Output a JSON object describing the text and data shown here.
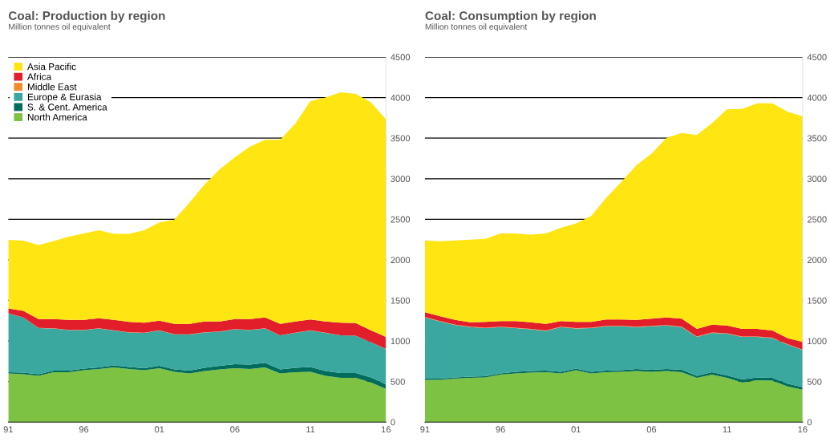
{
  "chart_data": [
    {
      "type": "area",
      "stacked": true,
      "title": "Coal: Production by region",
      "subtitle": "Million tonnes oil equivalent",
      "x": [
        1991,
        1992,
        1993,
        1994,
        1995,
        1996,
        1997,
        1998,
        1999,
        2000,
        2001,
        2002,
        2003,
        2004,
        2005,
        2006,
        2007,
        2008,
        2009,
        2010,
        2011,
        2012,
        2013,
        2014,
        2015,
        2016
      ],
      "xlim": [
        1991,
        2016
      ],
      "xticks": [
        {
          "value": 1991,
          "label": "91"
        },
        {
          "value": 1996,
          "label": "96"
        },
        {
          "value": 2001,
          "label": "01"
        },
        {
          "value": 2006,
          "label": "06"
        },
        {
          "value": 2011,
          "label": "11"
        },
        {
          "value": 2016,
          "label": "16"
        }
      ],
      "ylim": [
        0,
        4500
      ],
      "yticks": [
        0,
        500,
        1000,
        1500,
        2000,
        2500,
        3000,
        3500,
        4000,
        4500
      ],
      "grid": "y",
      "legend": "top left",
      "series": [
        {
          "name": "North America",
          "color": "#7dc242",
          "values": [
            600,
            590,
            570,
            615,
            615,
            640,
            655,
            675,
            655,
            640,
            665,
            620,
            600,
            630,
            650,
            665,
            655,
            675,
            600,
            615,
            620,
            570,
            545,
            545,
            490,
            410
          ]
        },
        {
          "name": "S. & Cent. America",
          "color": "#006c5b",
          "values": [
            15,
            20,
            20,
            20,
            20,
            20,
            20,
            25,
            25,
            25,
            30,
            30,
            35,
            40,
            45,
            50,
            55,
            55,
            50,
            55,
            60,
            60,
            60,
            60,
            60,
            55
          ]
        },
        {
          "name": "Europe & Eurasia",
          "color": "#3aa89f",
          "values": [
            725,
            680,
            570,
            520,
            500,
            475,
            480,
            430,
            425,
            435,
            435,
            430,
            445,
            435,
            420,
            430,
            425,
            425,
            420,
            430,
            450,
            470,
            465,
            460,
            435,
            435
          ]
        },
        {
          "name": "Middle East",
          "color": "#f28c28",
          "values": [
            1,
            1,
            1,
            1,
            1,
            1,
            1,
            1,
            1,
            1,
            1,
            1,
            1,
            1,
            1,
            1,
            1,
            1,
            1,
            1,
            1,
            1,
            1,
            1,
            1,
            1
          ]
        },
        {
          "name": "Africa",
          "color": "#e31e2b",
          "values": [
            60,
            80,
            110,
            115,
            125,
            125,
            125,
            130,
            130,
            125,
            120,
            130,
            130,
            135,
            125,
            125,
            135,
            135,
            140,
            140,
            135,
            140,
            155,
            155,
            145,
            150
          ]
        },
        {
          "name": "Asia Pacific",
          "color": "#ffe512",
          "values": [
            845,
            865,
            910,
            960,
            1025,
            1065,
            1085,
            1060,
            1085,
            1140,
            1210,
            1285,
            1495,
            1690,
            1875,
            1995,
            2125,
            2190,
            2270,
            2440,
            2690,
            2760,
            2840,
            2825,
            2810,
            2680
          ]
        }
      ]
    },
    {
      "type": "area",
      "stacked": true,
      "title": "Coal: Consumption by region",
      "subtitle": "Million tonnes oil equivalent",
      "x": [
        1991,
        1992,
        1993,
        1994,
        1995,
        1996,
        1997,
        1998,
        1999,
        2000,
        2001,
        2002,
        2003,
        2004,
        2005,
        2006,
        2007,
        2008,
        2009,
        2010,
        2011,
        2012,
        2013,
        2014,
        2015,
        2016
      ],
      "xlim": [
        1991,
        2016
      ],
      "xticks": [
        {
          "value": 1991,
          "label": "91"
        },
        {
          "value": 1996,
          "label": "96"
        },
        {
          "value": 2001,
          "label": "01"
        },
        {
          "value": 2006,
          "label": "06"
        },
        {
          "value": 2011,
          "label": "11"
        },
        {
          "value": 2016,
          "label": "16"
        }
      ],
      "ylim": [
        0,
        4500
      ],
      "yticks": [
        0,
        500,
        1000,
        1500,
        2000,
        2500,
        3000,
        3500,
        4000,
        4500
      ],
      "grid": "y",
      "series": [
        {
          "color": "#7dc242",
          "values": [
            520,
            520,
            535,
            545,
            550,
            585,
            600,
            610,
            615,
            600,
            640,
            600,
            615,
            620,
            630,
            620,
            630,
            615,
            545,
            585,
            545,
            490,
            515,
            510,
            440,
            400
          ]
        },
        {
          "color": "#006c5b",
          "values": [
            15,
            15,
            15,
            15,
            15,
            15,
            20,
            20,
            20,
            20,
            20,
            20,
            20,
            20,
            25,
            25,
            25,
            30,
            25,
            30,
            30,
            35,
            35,
            35,
            35,
            30
          ]
        },
        {
          "color": "#3aa89f",
          "values": [
            755,
            705,
            645,
            610,
            595,
            570,
            540,
            515,
            490,
            550,
            495,
            540,
            545,
            540,
            515,
            535,
            535,
            525,
            480,
            485,
            515,
            525,
            500,
            490,
            480,
            460
          ]
        },
        {
          "color": "#f28c28",
          "values": [
            5,
            5,
            5,
            5,
            5,
            5,
            5,
            5,
            5,
            5,
            5,
            5,
            5,
            5,
            5,
            5,
            5,
            5,
            5,
            5,
            5,
            5,
            5,
            5,
            5,
            5
          ]
        },
        {
          "color": "#e31e2b",
          "values": [
            60,
            60,
            60,
            55,
            70,
            70,
            80,
            80,
            80,
            70,
            75,
            70,
            80,
            80,
            85,
            90,
            95,
            100,
            95,
            95,
            95,
            95,
            95,
            90,
            75,
            90
          ]
        },
        {
          "color": "#ffe512",
          "values": [
            885,
            925,
            980,
            1020,
            1025,
            1080,
            1080,
            1080,
            1115,
            1150,
            1215,
            1305,
            1500,
            1695,
            1905,
            2035,
            2215,
            2290,
            2390,
            2485,
            2665,
            2710,
            2780,
            2800,
            2790,
            2785
          ]
        }
      ]
    }
  ]
}
